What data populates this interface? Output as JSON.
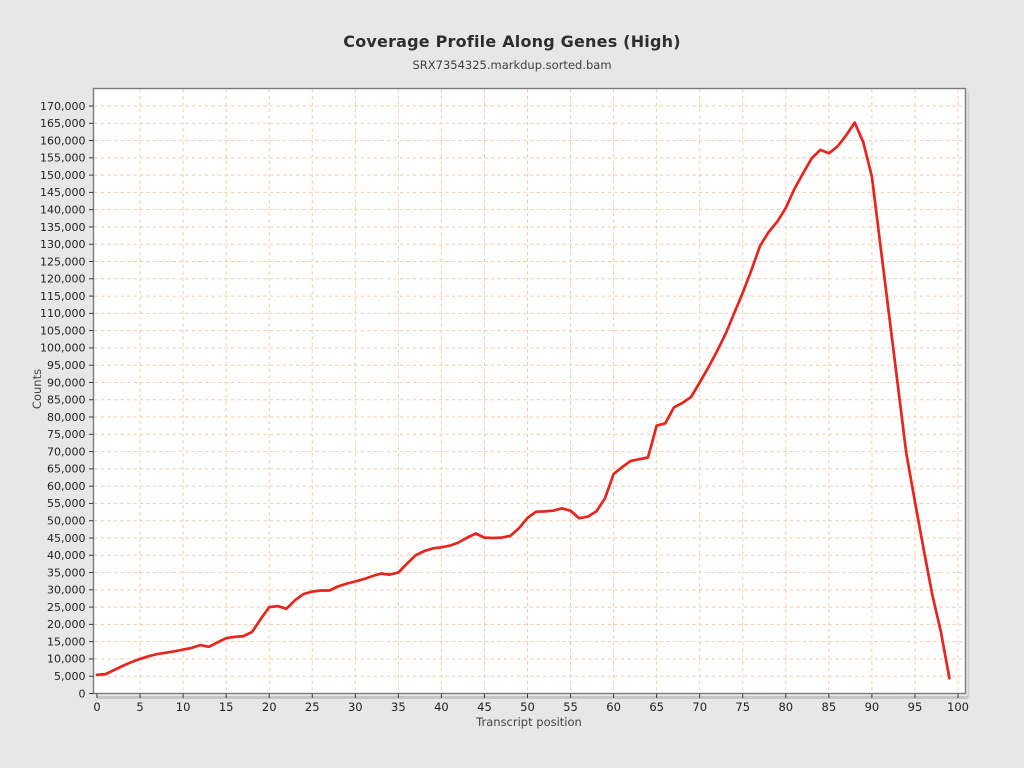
{
  "header": {
    "title": "Coverage Profile Along Genes (High)",
    "subtitle": "SRX7354325.markdup.sorted.bam"
  },
  "chart_data": {
    "type": "line",
    "title": "Coverage Profile Along Genes (High)",
    "subtitle": "SRX7354325.markdup.sorted.bam",
    "xlabel": "Transcript position",
    "ylabel": "Counts",
    "xlim": [
      0,
      100
    ],
    "ylim": [
      0,
      170000
    ],
    "x_tick_step": 5,
    "y_tick_step": 5000,
    "grid": "dashed, both axes",
    "legend": "none",
    "line_color": "#e8241d",
    "grid_color": "#f5cdab",
    "plot_bg": "#ffffff",
    "figure_bg": "#e7e7e7",
    "x": [
      0,
      1,
      2,
      3,
      4,
      5,
      6,
      7,
      8,
      9,
      10,
      11,
      12,
      13,
      14,
      15,
      16,
      17,
      18,
      19,
      20,
      21,
      22,
      23,
      24,
      25,
      26,
      27,
      28,
      29,
      30,
      31,
      32,
      33,
      34,
      35,
      36,
      37,
      38,
      39,
      40,
      41,
      42,
      43,
      44,
      45,
      46,
      47,
      48,
      49,
      50,
      51,
      52,
      53,
      54,
      55,
      56,
      57,
      58,
      59,
      60,
      61,
      62,
      63,
      64,
      65,
      66,
      67,
      68,
      69,
      70,
      71,
      72,
      73,
      74,
      75,
      76,
      77,
      78,
      79,
      80,
      81,
      82,
      83,
      84,
      85,
      86,
      87,
      88,
      89,
      90,
      91,
      92,
      93,
      94,
      95,
      96,
      97,
      98,
      99
    ],
    "counts": [
      5400,
      5600,
      6800,
      8000,
      9100,
      10000,
      10800,
      11400,
      11800,
      12200,
      12700,
      13200,
      14000,
      13500,
      14800,
      16000,
      16400,
      16600,
      17800,
      21500,
      25000,
      25300,
      24500,
      27000,
      28800,
      29500,
      29800,
      29800,
      31000,
      31800,
      32400,
      33100,
      34000,
      34700,
      34400,
      35000,
      37600,
      40000,
      41200,
      42000,
      42300,
      42800,
      43700,
      45100,
      46300,
      45100,
      45000,
      45100,
      45600,
      47800,
      50800,
      52600,
      52700,
      52900,
      53600,
      52900,
      50700,
      51200,
      52700,
      56500,
      63500,
      65500,
      67300,
      67800,
      68300,
      77500,
      78200,
      82800,
      84100,
      85800,
      90000,
      94300,
      99000,
      104000,
      110000,
      116000,
      122500,
      129500,
      133500,
      136500,
      140500,
      146000,
      150500,
      154800,
      157300,
      156300,
      158300,
      161500,
      165200,
      159500,
      149500,
      129500,
      109500,
      89500,
      69500,
      55400,
      41800,
      28700,
      18000,
      4400
    ]
  }
}
